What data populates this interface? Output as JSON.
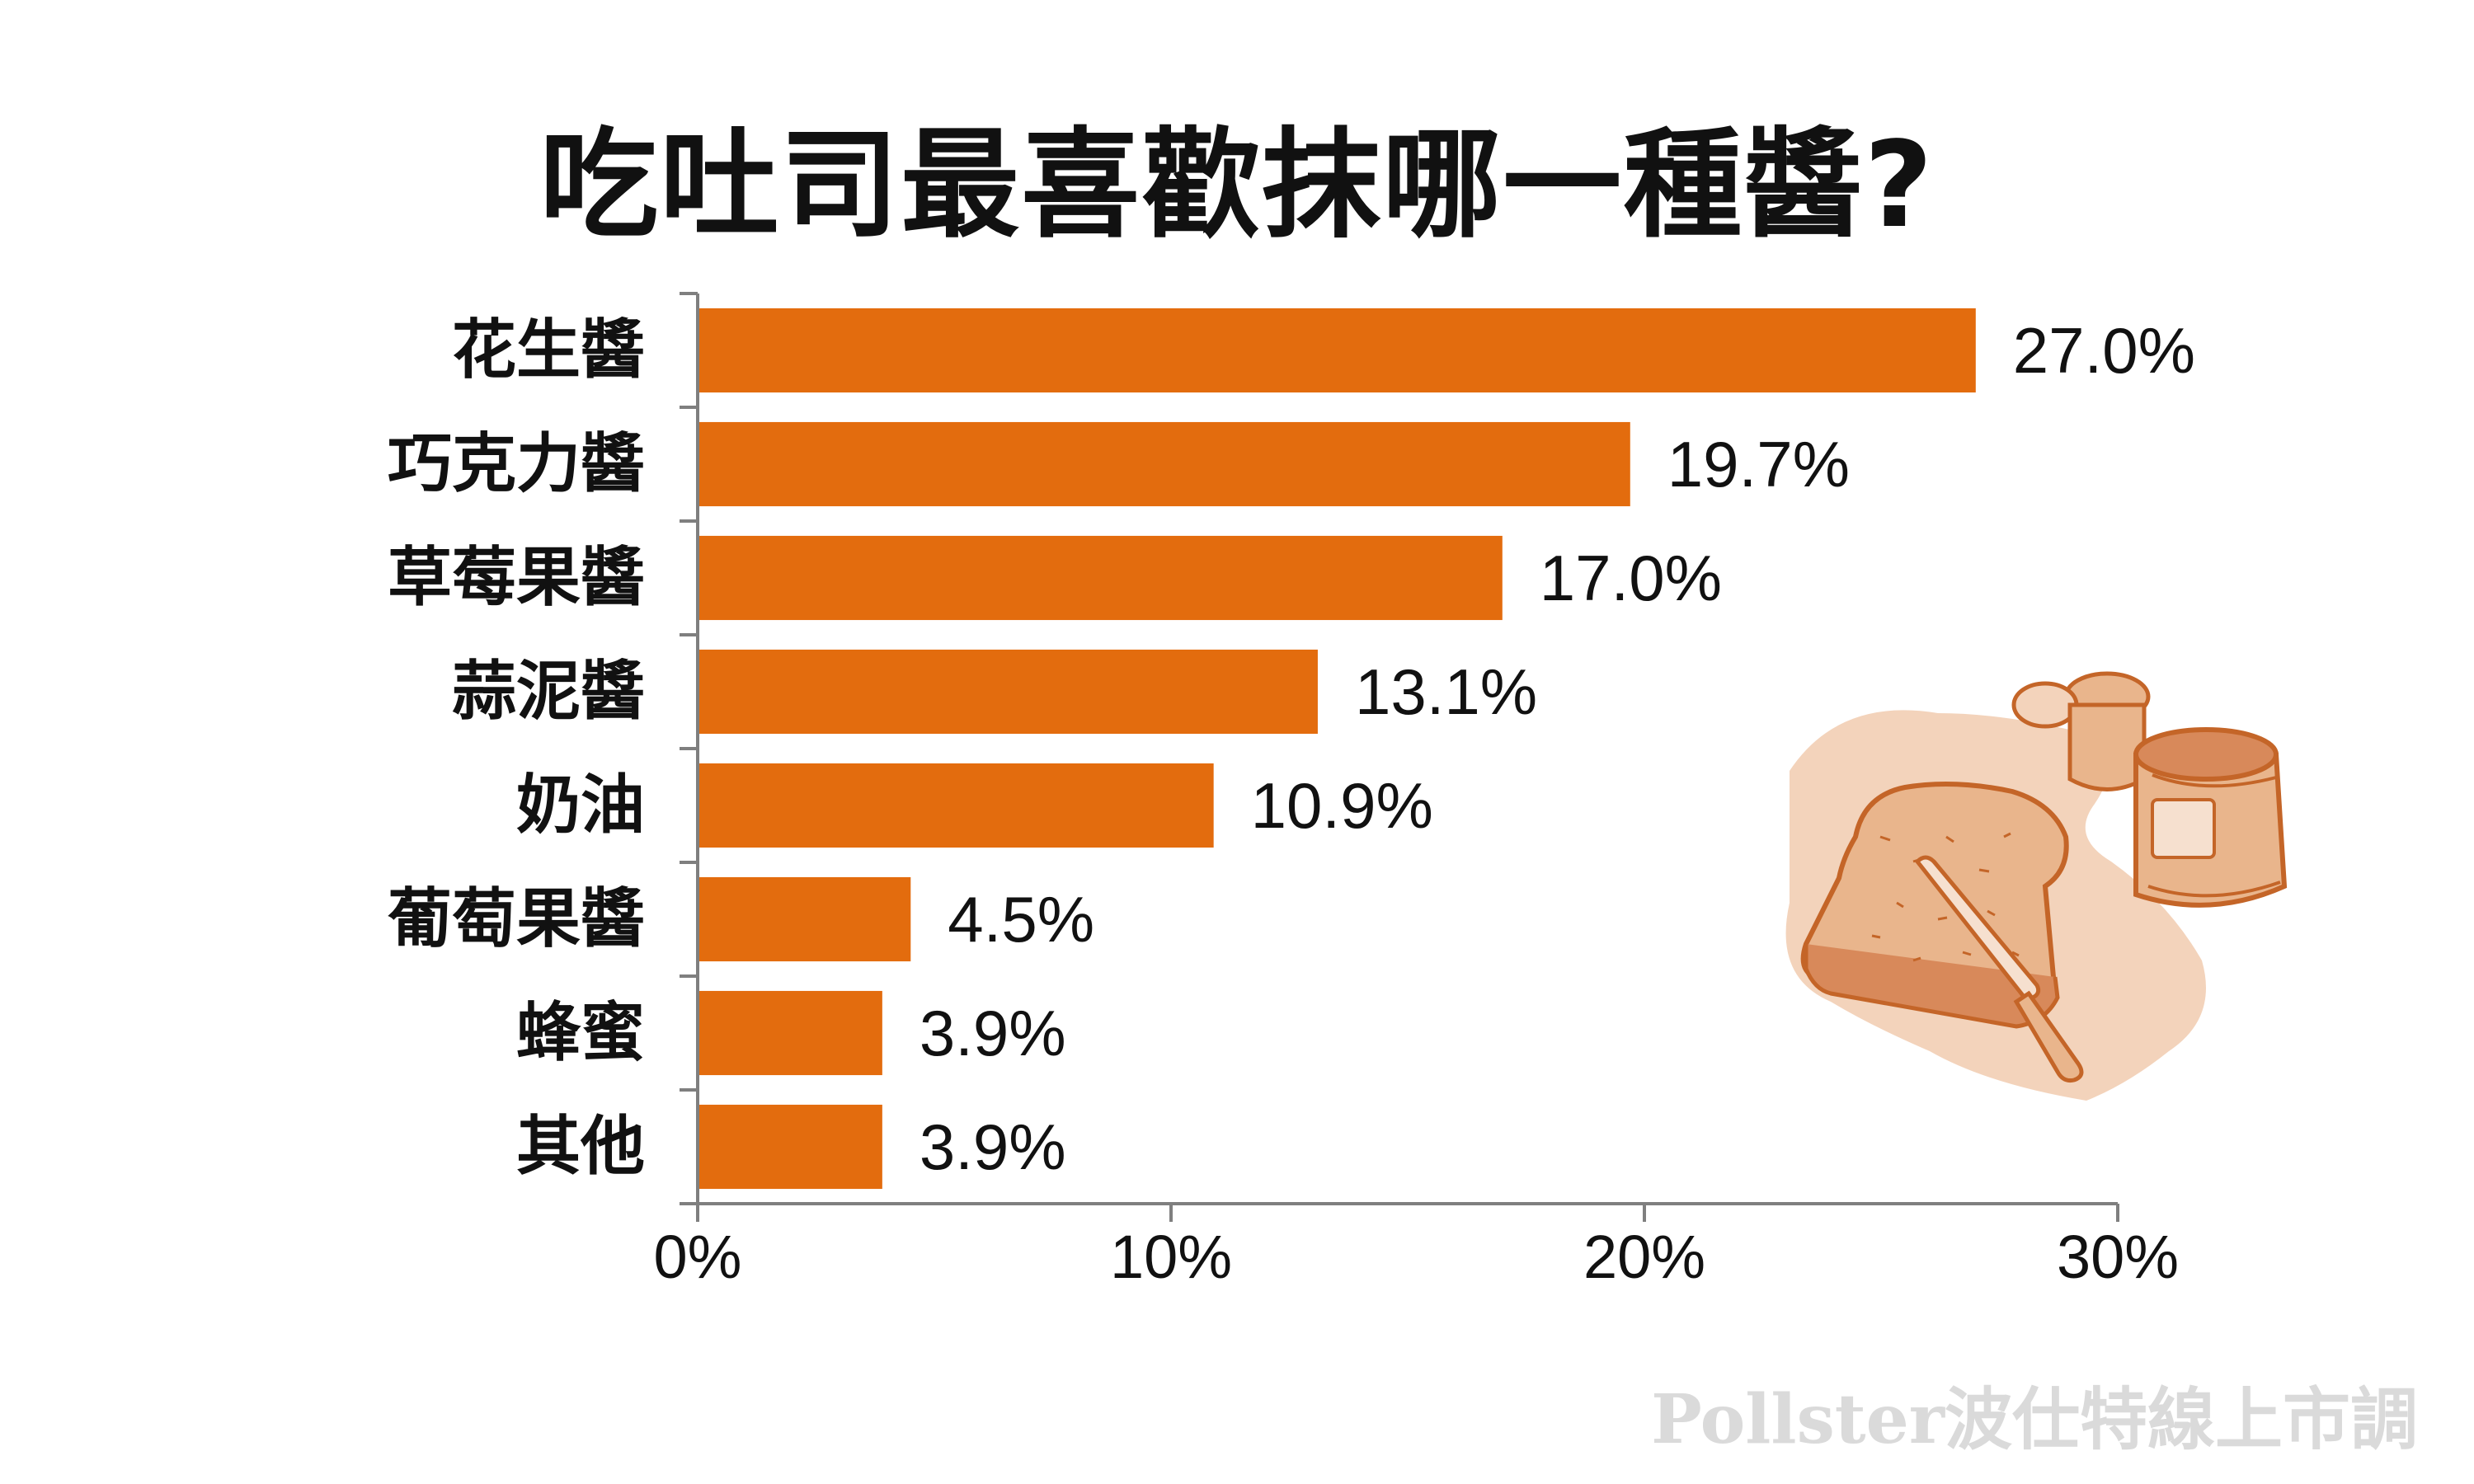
{
  "title": "吃吐司最喜歡抹哪一種醬?",
  "watermark": "Pollster波仕特線上市調",
  "colors": {
    "bar": "#E36C0E",
    "axis": "#7f7f7f",
    "illustration": "#c46528",
    "illustration_fill": "#e9b58c"
  },
  "chart_data": {
    "type": "bar",
    "orientation": "horizontal",
    "categories": [
      "花生醬",
      "巧克力醬",
      "草莓果醬",
      "蒜泥醬",
      "奶油",
      "葡萄果醬",
      "蜂蜜",
      "其他"
    ],
    "values": [
      27.0,
      19.7,
      17.0,
      13.1,
      10.9,
      4.5,
      3.9,
      3.9
    ],
    "value_labels": [
      "27.0%",
      "19.7%",
      "17.0%",
      "13.1%",
      "10.9%",
      "4.5%",
      "3.9%",
      "3.9%"
    ],
    "xlim": [
      0,
      30
    ],
    "xticks": [
      0,
      10,
      20,
      30
    ],
    "xtick_labels": [
      "0%",
      "10%",
      "20%",
      "30%"
    ],
    "grid": false,
    "legend": "none"
  }
}
